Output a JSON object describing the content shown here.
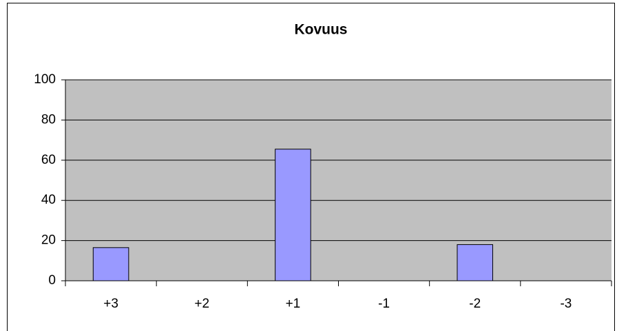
{
  "chart_data": {
    "type": "bar",
    "title": "Kovuus",
    "categories": [
      "+3",
      "+2",
      "+1",
      "-1",
      "-2",
      "-3"
    ],
    "values": [
      16.5,
      0,
      65.5,
      0,
      18,
      0
    ],
    "color": "#9999ff",
    "ylim": [
      0,
      100
    ],
    "yticks": [
      0,
      20,
      40,
      60,
      80,
      100
    ],
    "grid": true
  }
}
